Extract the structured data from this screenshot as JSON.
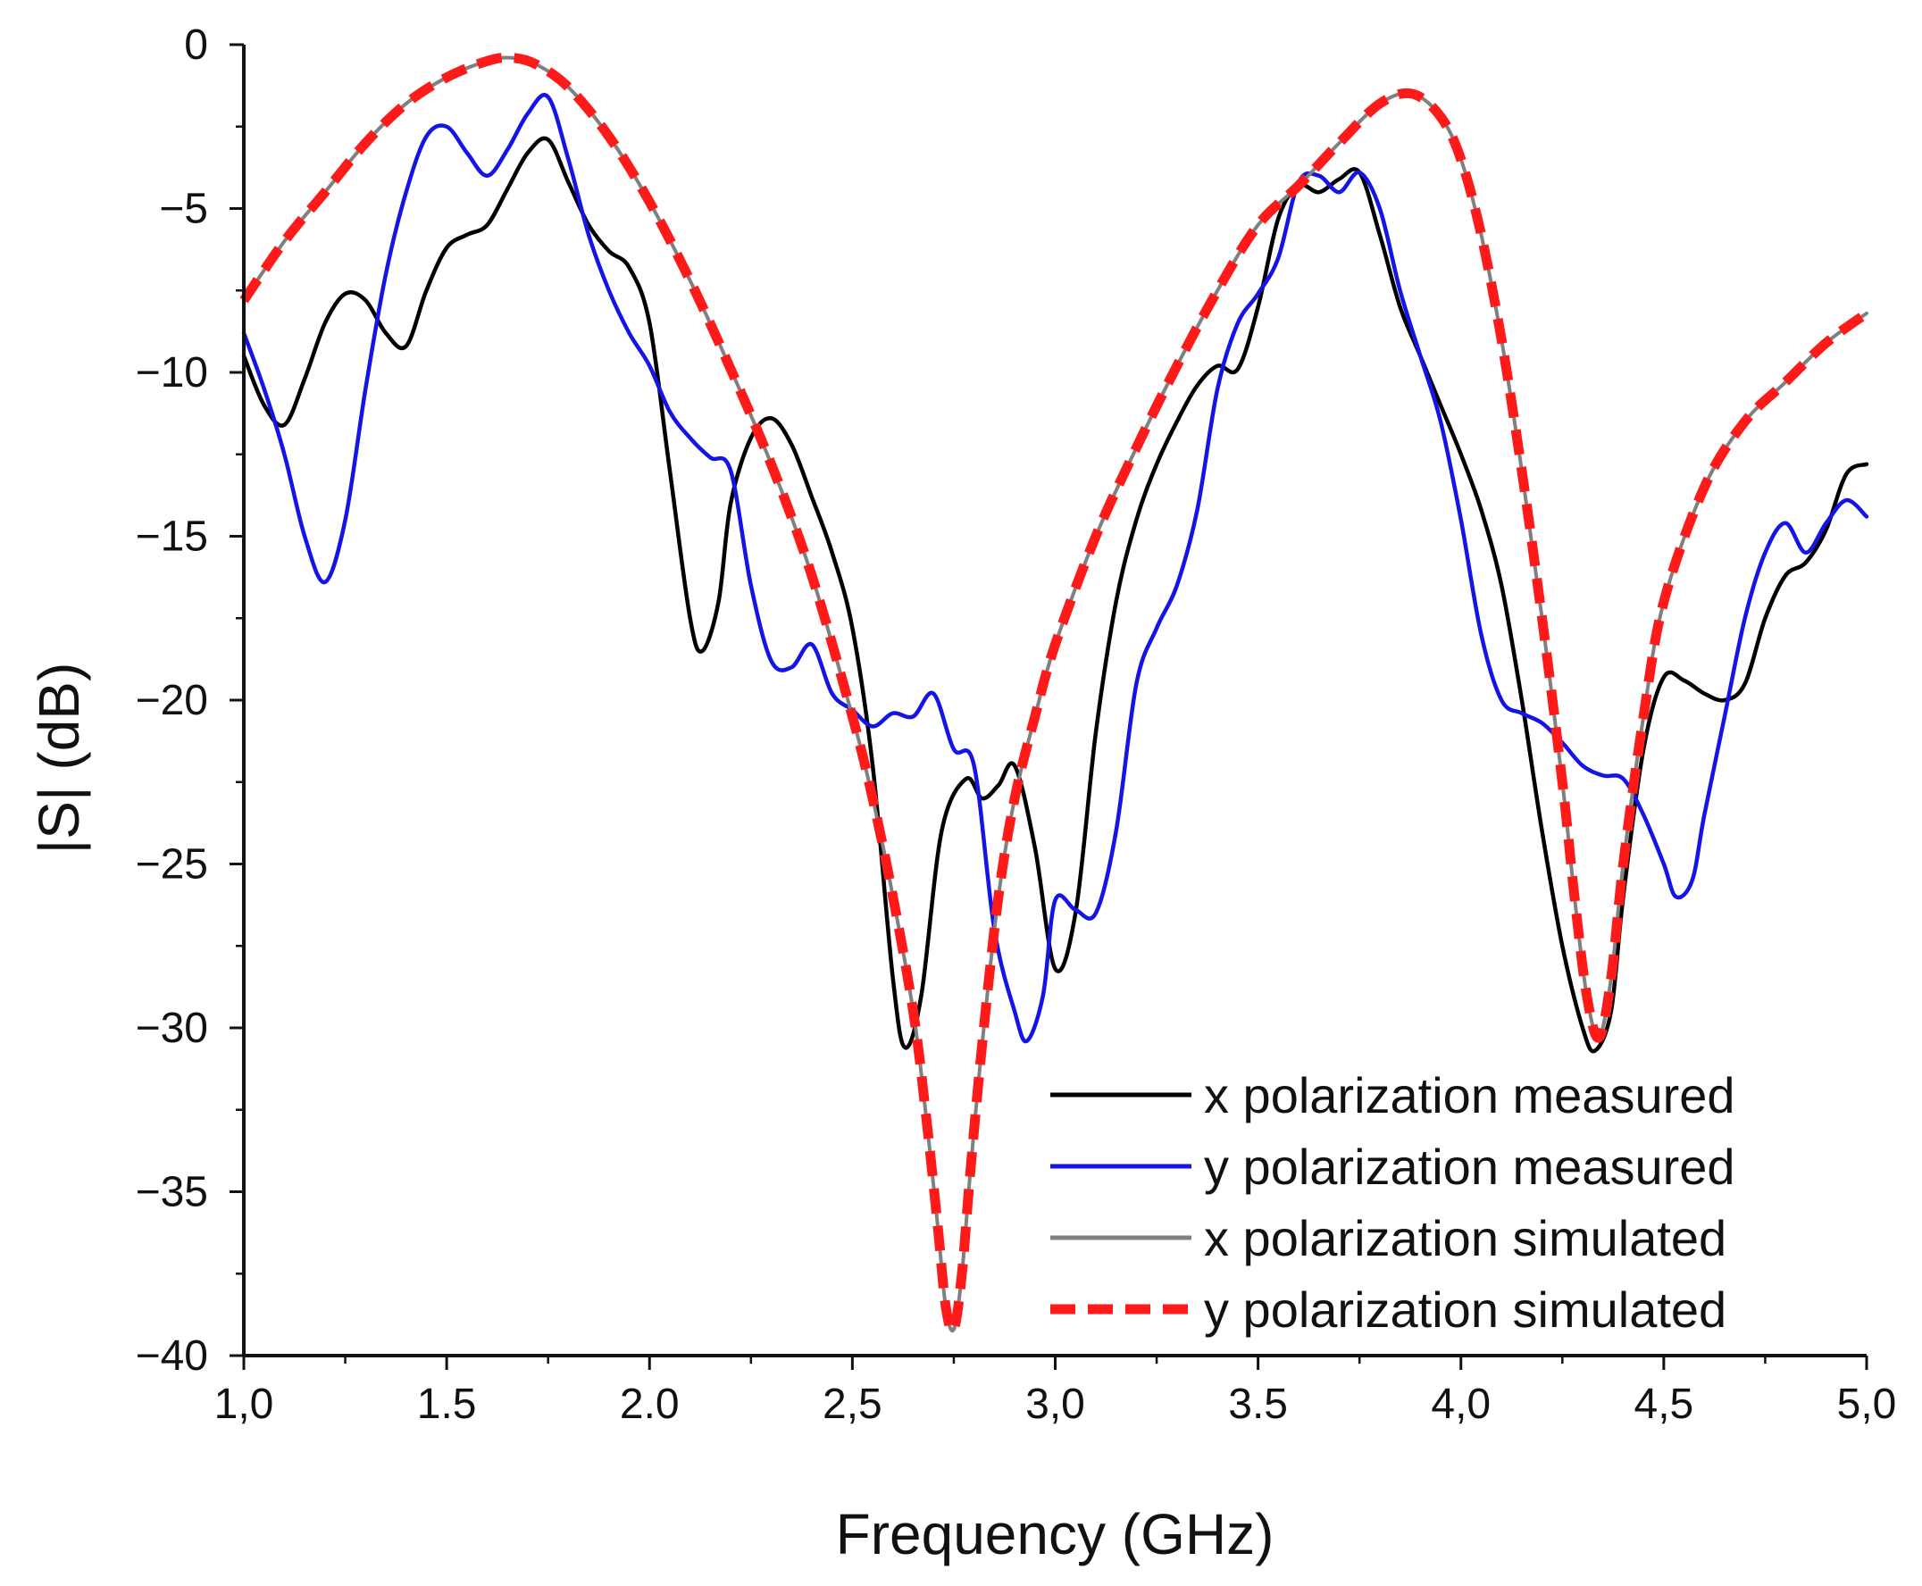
{
  "chart_data": {
    "type": "line",
    "title": "",
    "xlabel": "Frequency (GHz)",
    "ylabel": "|S| (dB)",
    "xlim": [
      1.0,
      5.0
    ],
    "ylim": [
      -40,
      0
    ],
    "xticks": [
      1.0,
      1.5,
      2.0,
      2.5,
      3.0,
      3.5,
      4.0,
      4.5,
      5.0
    ],
    "xtick_labels": [
      "1,0",
      "1.5",
      "2.0",
      "2,5",
      "3,0",
      "3.5",
      "4,0",
      "4,5",
      "5,0"
    ],
    "yticks": [
      0,
      -5,
      -10,
      -15,
      -20,
      -25,
      -30,
      -35,
      -40
    ],
    "ytick_labels": [
      "0",
      "−5",
      "−10",
      "−15",
      "−20",
      "−25",
      "−30",
      "−35",
      "−40"
    ],
    "grid": false,
    "legend_position": "bottom-right",
    "series": [
      {
        "name": "x polarization measured",
        "color": "#000000",
        "style": "solid",
        "x": [
          1.0,
          1.05,
          1.1,
          1.15,
          1.2,
          1.25,
          1.3,
          1.35,
          1.4,
          1.45,
          1.5,
          1.55,
          1.6,
          1.65,
          1.7,
          1.75,
          1.8,
          1.85,
          1.9,
          1.95,
          2.0,
          2.05,
          2.1,
          2.13,
          2.17,
          2.2,
          2.25,
          2.3,
          2.35,
          2.4,
          2.45,
          2.5,
          2.55,
          2.6,
          2.63,
          2.67,
          2.72,
          2.78,
          2.82,
          2.86,
          2.9,
          2.95,
          3.0,
          3.05,
          3.1,
          3.15,
          3.2,
          3.25,
          3.3,
          3.35,
          3.4,
          3.45,
          3.5,
          3.55,
          3.6,
          3.65,
          3.7,
          3.75,
          3.8,
          3.85,
          3.9,
          3.95,
          4.0,
          4.05,
          4.1,
          4.15,
          4.2,
          4.25,
          4.3,
          4.33,
          4.37,
          4.4,
          4.45,
          4.5,
          4.55,
          4.6,
          4.65,
          4.7,
          4.75,
          4.8,
          4.85,
          4.9,
          4.95,
          5.0
        ],
        "y": [
          -9.5,
          -11.0,
          -11.6,
          -10.2,
          -8.5,
          -7.6,
          -7.8,
          -8.8,
          -9.2,
          -7.5,
          -6.2,
          -5.8,
          -5.5,
          -4.4,
          -3.3,
          -2.9,
          -4.2,
          -5.5,
          -6.3,
          -6.8,
          -8.5,
          -13.0,
          -17.5,
          -18.5,
          -17.0,
          -14.0,
          -12.0,
          -11.4,
          -12.2,
          -13.8,
          -15.5,
          -17.8,
          -22.0,
          -28.5,
          -30.6,
          -29.0,
          -24.0,
          -22.4,
          -23.0,
          -22.6,
          -22.0,
          -24.5,
          -28.2,
          -26.5,
          -21.0,
          -17.0,
          -14.5,
          -12.8,
          -11.5,
          -10.4,
          -9.8,
          -9.9,
          -8.0,
          -5.3,
          -4.3,
          -4.5,
          -4.1,
          -3.9,
          -5.8,
          -8.0,
          -9.5,
          -11.0,
          -12.5,
          -14.2,
          -16.5,
          -20.0,
          -24.0,
          -27.5,
          -30.0,
          -30.7,
          -29.5,
          -26.0,
          -21.5,
          -19.3,
          -19.4,
          -19.8,
          -20.0,
          -19.5,
          -17.5,
          -16.2,
          -15.8,
          -14.8,
          -13.1,
          -12.8
        ]
      },
      {
        "name": "y polarization measured",
        "color": "#1414e6",
        "style": "solid",
        "x": [
          1.0,
          1.05,
          1.1,
          1.15,
          1.2,
          1.25,
          1.3,
          1.35,
          1.4,
          1.45,
          1.5,
          1.55,
          1.6,
          1.65,
          1.7,
          1.75,
          1.8,
          1.85,
          1.9,
          1.95,
          2.0,
          2.05,
          2.1,
          2.15,
          2.2,
          2.25,
          2.3,
          2.35,
          2.4,
          2.45,
          2.5,
          2.55,
          2.6,
          2.65,
          2.7,
          2.75,
          2.8,
          2.85,
          2.9,
          2.93,
          2.97,
          3.0,
          3.05,
          3.1,
          3.15,
          3.2,
          3.25,
          3.3,
          3.35,
          3.4,
          3.45,
          3.5,
          3.55,
          3.6,
          3.65,
          3.7,
          3.75,
          3.8,
          3.85,
          3.9,
          3.95,
          4.0,
          4.05,
          4.1,
          4.15,
          4.2,
          4.25,
          4.3,
          4.35,
          4.4,
          4.45,
          4.5,
          4.53,
          4.57,
          4.6,
          4.65,
          4.7,
          4.75,
          4.8,
          4.85,
          4.9,
          4.95,
          5.0
        ],
        "y": [
          -8.8,
          -10.5,
          -12.5,
          -15.0,
          -16.4,
          -14.5,
          -10.5,
          -7.0,
          -4.5,
          -2.8,
          -2.5,
          -3.3,
          -4.0,
          -3.2,
          -2.1,
          -1.6,
          -3.5,
          -5.8,
          -7.5,
          -8.8,
          -9.8,
          -11.2,
          -12.0,
          -12.6,
          -13.0,
          -16.5,
          -18.8,
          -19.0,
          -18.3,
          -19.8,
          -20.3,
          -20.8,
          -20.4,
          -20.5,
          -19.8,
          -21.5,
          -22.0,
          -27.0,
          -29.5,
          -30.4,
          -29.0,
          -26.1,
          -26.4,
          -26.5,
          -24.0,
          -19.5,
          -17.8,
          -16.5,
          -14.2,
          -10.5,
          -8.5,
          -7.6,
          -6.5,
          -4.2,
          -4.0,
          -4.5,
          -3.9,
          -5.0,
          -7.5,
          -9.5,
          -11.5,
          -14.5,
          -18.0,
          -20.0,
          -20.4,
          -20.7,
          -21.3,
          -22.0,
          -22.3,
          -22.4,
          -23.5,
          -25.0,
          -26.0,
          -25.5,
          -23.5,
          -20.5,
          -17.5,
          -15.5,
          -14.6,
          -15.5,
          -14.6,
          -13.9,
          -14.4
        ]
      },
      {
        "name": "x polarization simulated",
        "color": "#808080",
        "style": "solid",
        "x": [
          1.0,
          1.1,
          1.2,
          1.3,
          1.4,
          1.5,
          1.6,
          1.66,
          1.72,
          1.8,
          1.9,
          2.0,
          2.1,
          2.2,
          2.3,
          2.4,
          2.5,
          2.55,
          2.6,
          2.65,
          2.68,
          2.71,
          2.73,
          2.75,
          2.77,
          2.79,
          2.82,
          2.86,
          2.9,
          2.95,
          3.0,
          3.1,
          3.2,
          3.3,
          3.4,
          3.5,
          3.6,
          3.7,
          3.8,
          3.88,
          3.95,
          4.0,
          4.05,
          4.1,
          4.15,
          4.2,
          4.25,
          4.28,
          4.31,
          4.34,
          4.37,
          4.4,
          4.45,
          4.5,
          4.6,
          4.7,
          4.8,
          4.9,
          5.0
        ],
        "y": [
          -7.8,
          -6.0,
          -4.5,
          -3.0,
          -1.8,
          -1.0,
          -0.5,
          -0.4,
          -0.6,
          -1.3,
          -2.8,
          -4.8,
          -7.2,
          -9.9,
          -12.8,
          -16.2,
          -20.5,
          -23.0,
          -26.0,
          -29.5,
          -32.5,
          -36.0,
          -38.5,
          -39.2,
          -37.5,
          -34.5,
          -30.5,
          -26.0,
          -23.0,
          -20.5,
          -18.3,
          -15.0,
          -12.3,
          -9.8,
          -7.5,
          -5.5,
          -4.3,
          -3.0,
          -1.8,
          -1.5,
          -2.2,
          -3.5,
          -5.8,
          -9.0,
          -13.0,
          -17.5,
          -22.5,
          -26.0,
          -29.0,
          -30.3,
          -28.5,
          -25.0,
          -20.5,
          -17.0,
          -13.5,
          -11.5,
          -10.3,
          -9.1,
          -8.2
        ]
      },
      {
        "name": "y polarization simulated",
        "color": "#ff1a1a",
        "style": "dashed",
        "x": [
          1.0,
          1.1,
          1.2,
          1.3,
          1.4,
          1.5,
          1.6,
          1.66,
          1.72,
          1.8,
          1.9,
          2.0,
          2.1,
          2.2,
          2.3,
          2.4,
          2.5,
          2.55,
          2.6,
          2.65,
          2.68,
          2.71,
          2.73,
          2.75,
          2.77,
          2.79,
          2.82,
          2.86,
          2.9,
          2.95,
          3.0,
          3.1,
          3.2,
          3.3,
          3.4,
          3.5,
          3.6,
          3.7,
          3.8,
          3.88,
          3.95,
          4.0,
          4.05,
          4.1,
          4.15,
          4.2,
          4.25,
          4.28,
          4.31,
          4.34,
          4.37,
          4.4,
          4.45,
          4.5,
          4.6,
          4.7,
          4.8,
          4.9,
          5.0
        ],
        "y": [
          -7.8,
          -6.0,
          -4.5,
          -3.0,
          -1.8,
          -1.0,
          -0.5,
          -0.4,
          -0.6,
          -1.3,
          -2.8,
          -4.8,
          -7.2,
          -9.9,
          -12.8,
          -16.2,
          -20.5,
          -23.0,
          -26.0,
          -29.5,
          -32.5,
          -36.0,
          -38.5,
          -39.2,
          -37.5,
          -34.5,
          -30.5,
          -26.0,
          -23.0,
          -20.5,
          -18.3,
          -15.0,
          -12.3,
          -9.8,
          -7.5,
          -5.5,
          -4.3,
          -3.0,
          -1.8,
          -1.5,
          -2.2,
          -3.5,
          -5.8,
          -9.0,
          -13.0,
          -17.5,
          -22.5,
          -26.0,
          -29.0,
          -30.3,
          -28.5,
          -25.0,
          -20.5,
          -17.0,
          -13.5,
          -11.5,
          -10.3,
          -9.1,
          -8.2
        ]
      }
    ]
  }
}
